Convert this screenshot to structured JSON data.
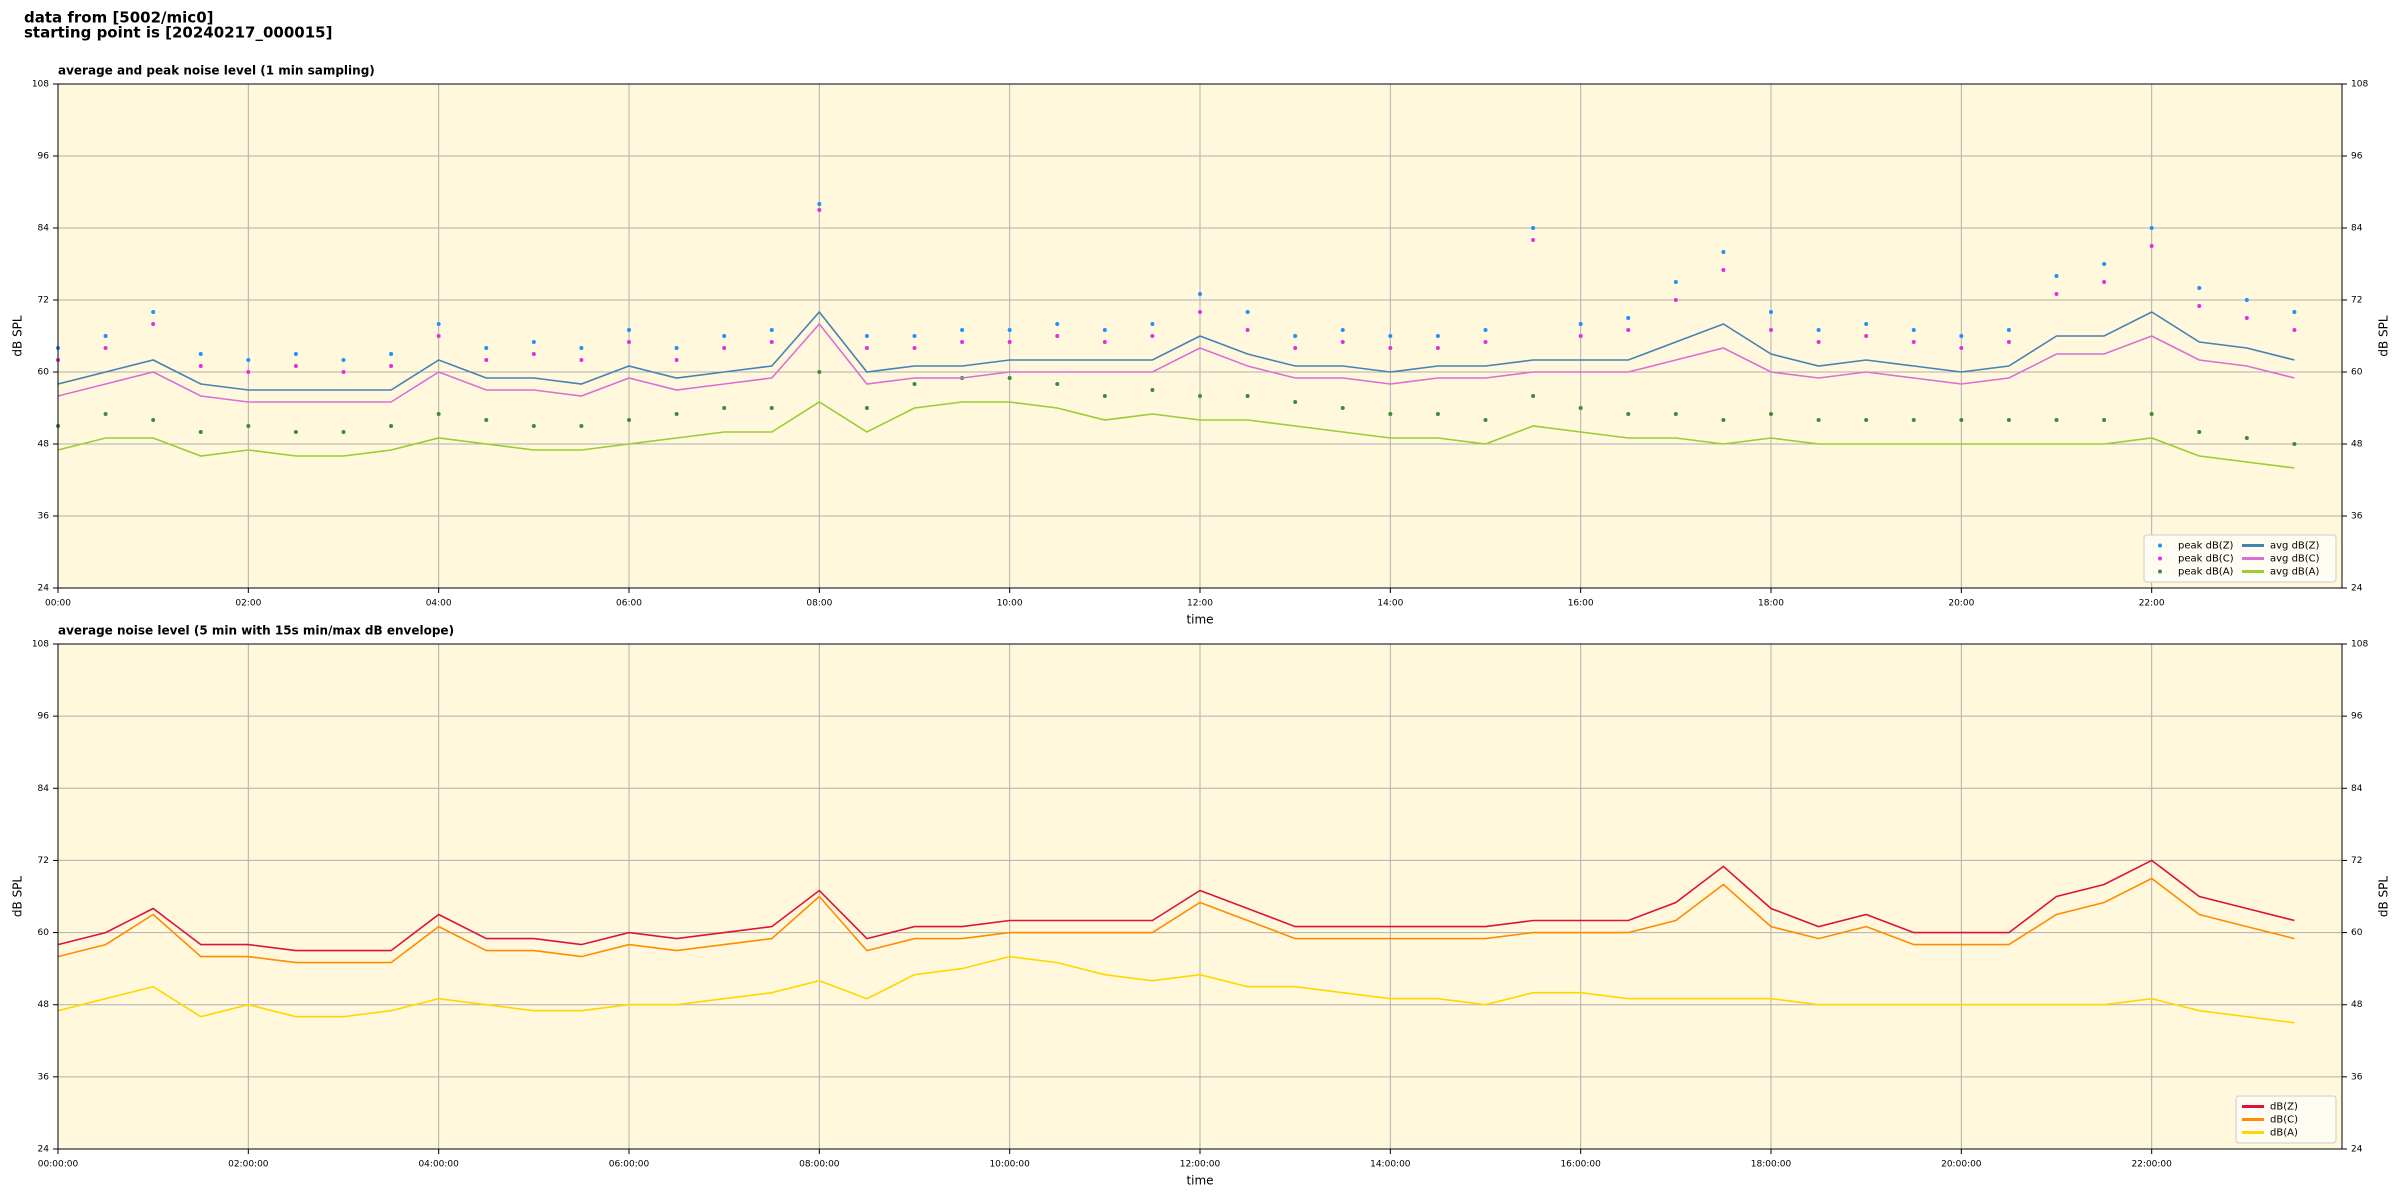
{
  "header": [
    "data from [5002/mic0]",
    "starting point is [20240217_000015]"
  ],
  "chart_data": [
    {
      "type": "line",
      "title": "average and peak noise level (1 min sampling)",
      "xlabel": "time",
      "ylabel": "dB SPL",
      "x": [
        0,
        0.5,
        1,
        1.5,
        2,
        2.5,
        3,
        3.5,
        4,
        4.5,
        5,
        5.5,
        6,
        6.5,
        7,
        7.5,
        8,
        8.5,
        9,
        9.5,
        10,
        10.5,
        11,
        11.5,
        12,
        12.5,
        13,
        13.5,
        14,
        14.5,
        15,
        15.5,
        16,
        16.5,
        17,
        17.5,
        18,
        18.5,
        19,
        19.5,
        20,
        20.5,
        21,
        21.5,
        22,
        22.5,
        23,
        23.5
      ],
      "xlim": [
        0,
        24
      ],
      "xticks": [
        {
          "value": 0,
          "label": "00:00"
        },
        {
          "value": 2,
          "label": "02:00"
        },
        {
          "value": 4,
          "label": "04:00"
        },
        {
          "value": 6,
          "label": "06:00"
        },
        {
          "value": 8,
          "label": "08:00"
        },
        {
          "value": 10,
          "label": "10:00"
        },
        {
          "value": 12,
          "label": "12:00"
        },
        {
          "value": 14,
          "label": "14:00"
        },
        {
          "value": 16,
          "label": "16:00"
        },
        {
          "value": 18,
          "label": "18:00"
        },
        {
          "value": 20,
          "label": "20:00"
        },
        {
          "value": 22,
          "label": "22:00"
        }
      ],
      "ylim": [
        24,
        108
      ],
      "yticks": [
        24,
        36,
        48,
        60,
        72,
        84,
        96,
        108
      ],
      "grid": true,
      "background": "#fff8dc",
      "legend": "lower right",
      "legend_columns": 2,
      "series": [
        {
          "name": "peak dB(Z)",
          "mode": "markers",
          "color": "#1e90ff",
          "values": [
            64,
            66,
            70,
            63,
            62,
            63,
            62,
            63,
            68,
            64,
            65,
            64,
            67,
            64,
            66,
            67,
            88,
            66,
            66,
            67,
            67,
            68,
            67,
            68,
            73,
            70,
            66,
            67,
            66,
            66,
            67,
            84,
            68,
            69,
            75,
            80,
            70,
            67,
            68,
            67,
            66,
            67,
            76,
            78,
            84,
            74,
            72,
            70
          ]
        },
        {
          "name": "peak dB(C)",
          "mode": "markers",
          "color": "#e030e0",
          "values": [
            62,
            64,
            68,
            61,
            60,
            61,
            60,
            61,
            66,
            62,
            63,
            62,
            65,
            62,
            64,
            65,
            87,
            64,
            64,
            65,
            65,
            66,
            65,
            66,
            70,
            67,
            64,
            65,
            64,
            64,
            65,
            82,
            66,
            67,
            72,
            77,
            67,
            65,
            66,
            65,
            64,
            65,
            73,
            75,
            81,
            71,
            69,
            67
          ]
        },
        {
          "name": "peak dB(A)",
          "mode": "markers",
          "color": "#3c8c3c",
          "values": [
            51,
            53,
            52,
            50,
            51,
            50,
            50,
            51,
            53,
            52,
            51,
            51,
            52,
            53,
            54,
            54,
            60,
            54,
            58,
            59,
            59,
            58,
            56,
            57,
            56,
            56,
            55,
            54,
            53,
            53,
            52,
            56,
            54,
            53,
            53,
            52,
            53,
            52,
            52,
            52,
            52,
            52,
            52,
            52,
            53,
            50,
            49,
            48
          ]
        },
        {
          "name": "avg dB(Z)",
          "mode": "lines",
          "color": "#4682b4",
          "values": [
            58,
            60,
            62,
            58,
            57,
            57,
            57,
            57,
            62,
            59,
            59,
            58,
            61,
            59,
            60,
            61,
            70,
            60,
            61,
            61,
            62,
            62,
            62,
            62,
            66,
            63,
            61,
            61,
            60,
            61,
            61,
            62,
            62,
            62,
            65,
            68,
            63,
            61,
            62,
            61,
            60,
            61,
            66,
            66,
            70,
            65,
            64,
            62
          ]
        },
        {
          "name": "avg dB(C)",
          "mode": "lines",
          "color": "#da70d6",
          "values": [
            56,
            58,
            60,
            56,
            55,
            55,
            55,
            55,
            60,
            57,
            57,
            56,
            59,
            57,
            58,
            59,
            68,
            58,
            59,
            59,
            60,
            60,
            60,
            60,
            64,
            61,
            59,
            59,
            58,
            59,
            59,
            60,
            60,
            60,
            62,
            64,
            60,
            59,
            60,
            59,
            58,
            59,
            63,
            63,
            66,
            62,
            61,
            59
          ]
        },
        {
          "name": "avg dB(A)",
          "mode": "lines",
          "color": "#9acd32",
          "values": [
            47,
            49,
            49,
            46,
            47,
            46,
            46,
            47,
            49,
            48,
            47,
            47,
            48,
            49,
            50,
            50,
            55,
            50,
            54,
            55,
            55,
            54,
            52,
            53,
            52,
            52,
            51,
            50,
            49,
            49,
            48,
            51,
            50,
            49,
            49,
            48,
            49,
            48,
            48,
            48,
            48,
            48,
            48,
            48,
            49,
            46,
            45,
            44
          ]
        }
      ]
    },
    {
      "type": "line",
      "title": "average noise level (5 min with 15s min/max dB envelope)",
      "xlabel": "time",
      "ylabel": "dB SPL",
      "x": [
        0,
        0.5,
        1,
        1.5,
        2,
        2.5,
        3,
        3.5,
        4,
        4.5,
        5,
        5.5,
        6,
        6.5,
        7,
        7.5,
        8,
        8.5,
        9,
        9.5,
        10,
        10.5,
        11,
        11.5,
        12,
        12.5,
        13,
        13.5,
        14,
        14.5,
        15,
        15.5,
        16,
        16.5,
        17,
        17.5,
        18,
        18.5,
        19,
        19.5,
        20,
        20.5,
        21,
        21.5,
        22,
        22.5,
        23,
        23.5
      ],
      "xlim": [
        0,
        24
      ],
      "xticks": [
        {
          "value": 0,
          "label": "00:00:00"
        },
        {
          "value": 2,
          "label": "02:00:00"
        },
        {
          "value": 4,
          "label": "04:00:00"
        },
        {
          "value": 6,
          "label": "06:00:00"
        },
        {
          "value": 8,
          "label": "08:00:00"
        },
        {
          "value": 10,
          "label": "10:00:00"
        },
        {
          "value": 12,
          "label": "12:00:00"
        },
        {
          "value": 14,
          "label": "14:00:00"
        },
        {
          "value": 16,
          "label": "16:00:00"
        },
        {
          "value": 18,
          "label": "18:00:00"
        },
        {
          "value": 20,
          "label": "20:00:00"
        },
        {
          "value": 22,
          "label": "22:00:00"
        }
      ],
      "ylim": [
        24,
        108
      ],
      "yticks": [
        24,
        36,
        48,
        60,
        72,
        84,
        96,
        108
      ],
      "grid": true,
      "background": "#fff8dc",
      "legend": "lower right",
      "legend_columns": 1,
      "series": [
        {
          "name": "dB(Z)",
          "mode": "lines",
          "color": "#dc143c",
          "values": [
            58,
            60,
            64,
            58,
            58,
            57,
            57,
            57,
            63,
            59,
            59,
            58,
            60,
            59,
            60,
            61,
            67,
            59,
            61,
            61,
            62,
            62,
            62,
            62,
            67,
            64,
            61,
            61,
            61,
            61,
            61,
            62,
            62,
            62,
            65,
            71,
            64,
            61,
            63,
            60,
            60,
            60,
            66,
            68,
            72,
            66,
            64,
            62
          ]
        },
        {
          "name": "dB(C)",
          "mode": "lines",
          "color": "#ff8c00",
          "values": [
            56,
            58,
            63,
            56,
            56,
            55,
            55,
            55,
            61,
            57,
            57,
            56,
            58,
            57,
            58,
            59,
            66,
            57,
            59,
            59,
            60,
            60,
            60,
            60,
            65,
            62,
            59,
            59,
            59,
            59,
            59,
            60,
            60,
            60,
            62,
            68,
            61,
            59,
            61,
            58,
            58,
            58,
            63,
            65,
            69,
            63,
            61,
            59
          ]
        },
        {
          "name": "dB(A)",
          "mode": "lines",
          "color": "#ffd700",
          "values": [
            47,
            49,
            51,
            46,
            48,
            46,
            46,
            47,
            49,
            48,
            47,
            47,
            48,
            48,
            49,
            50,
            52,
            49,
            53,
            54,
            56,
            55,
            53,
            52,
            53,
            51,
            51,
            50,
            49,
            49,
            48,
            50,
            50,
            49,
            49,
            49,
            49,
            48,
            48,
            48,
            48,
            48,
            48,
            48,
            49,
            47,
            46,
            45
          ]
        }
      ]
    }
  ]
}
